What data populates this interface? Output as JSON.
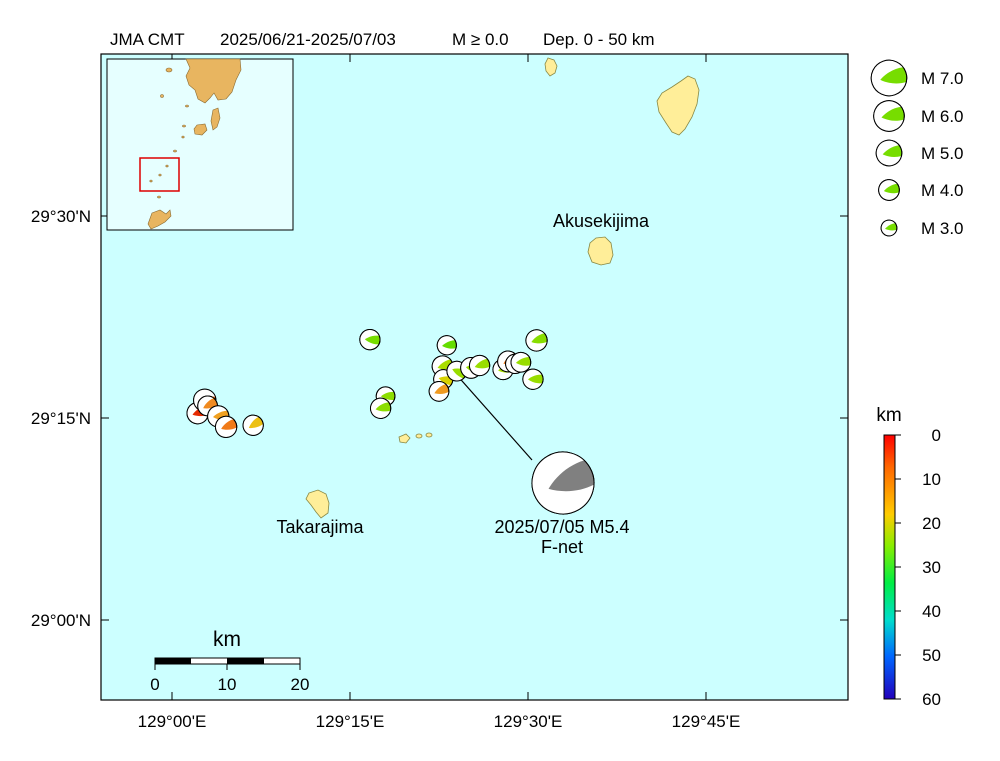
{
  "title": {
    "source": "JMA CMT",
    "period": "2025/06/21-2025/07/03",
    "magnitude": "M ≥ 0.0",
    "depth": "Dep. 0 - 50 km"
  },
  "colors": {
    "sea": "#ccffff",
    "land_main": "#ffee99",
    "land_inset": "#e8b560",
    "inset_sea": "#e6ffff",
    "highlight_box": "#dd0000",
    "mechanism_white": "#ffffff",
    "featured_mechanism": "#808080"
  },
  "axes": {
    "lat_ticks": [
      "29°30'N",
      "29°15'N",
      "29°00'N"
    ],
    "lon_ticks": [
      "129°00'E",
      "129°15'E",
      "129°30'E",
      "129°45'E"
    ]
  },
  "places": {
    "akusekijima": "Akusekijima",
    "takarajima": "Takarajima"
  },
  "featured_event": {
    "label": "2025/07/05 M5.4",
    "source": "F-net",
    "color": "#808080"
  },
  "legend_magnitude": [
    {
      "label": "M 7.0",
      "mag": 7.0
    },
    {
      "label": "M 6.0",
      "mag": 6.0
    },
    {
      "label": "M 5.0",
      "mag": 5.0
    },
    {
      "label": "M 4.0",
      "mag": 4.0
    },
    {
      "label": "M 3.0",
      "mag": 3.0
    }
  ],
  "depth_scale": {
    "unit": "km",
    "ticks": [
      "0",
      "10",
      "20",
      "30",
      "40",
      "50",
      "60"
    ]
  },
  "scale_bar": {
    "unit": "km",
    "ticks": [
      "0",
      "10",
      "20"
    ]
  },
  "mechanisms": [
    {
      "lon": 129.036,
      "lat": 29.256,
      "mag": 3.9,
      "color": "#e62a00",
      "rot": 20
    },
    {
      "lon": 129.046,
      "lat": 29.272,
      "mag": 4.1,
      "color": "#f06a10",
      "rot": 45
    },
    {
      "lon": 129.05,
      "lat": 29.265,
      "mag": 3.6,
      "color": "#f08a20",
      "rot": 10
    },
    {
      "lon": 129.065,
      "lat": 29.252,
      "mag": 3.9,
      "color": "#f0a020",
      "rot": 30
    },
    {
      "lon": 129.076,
      "lat": 29.239,
      "mag": 3.9,
      "color": "#f07a18",
      "rot": 15
    },
    {
      "lon": 129.114,
      "lat": 29.241,
      "mag": 3.7,
      "color": "#ecc015",
      "rot": 5
    },
    {
      "lon": 129.278,
      "lat": 29.347,
      "mag": 3.7,
      "color": "#77dd00",
      "rot": 40
    },
    {
      "lon": 129.3,
      "lat": 29.277,
      "mag": 3.4,
      "color": "#8cdd00",
      "rot": 35
    },
    {
      "lon": 129.293,
      "lat": 29.262,
      "mag": 3.7,
      "color": "#8cdd00",
      "rot": 25
    },
    {
      "lon": 129.38,
      "lat": 29.314,
      "mag": 3.8,
      "color": "#aadd00",
      "rot": 20
    },
    {
      "lon": 129.381,
      "lat": 29.298,
      "mag": 3.5,
      "color": "#d8d200",
      "rot": 50
    },
    {
      "lon": 129.375,
      "lat": 29.283,
      "mag": 3.6,
      "color": "#f09a20",
      "rot": 15
    },
    {
      "lon": 129.386,
      "lat": 29.34,
      "mag": 3.5,
      "color": "#66dd00",
      "rot": 30
    },
    {
      "lon": 129.4,
      "lat": 29.308,
      "mag": 3.6,
      "color": "#99dd00",
      "rot": 60
    },
    {
      "lon": 129.42,
      "lat": 29.312,
      "mag": 3.8,
      "color": "#99dd00",
      "rot": 45
    },
    {
      "lon": 129.432,
      "lat": 29.315,
      "mag": 3.7,
      "color": "#99dd00",
      "rot": 20
    },
    {
      "lon": 129.465,
      "lat": 29.31,
      "mag": 3.7,
      "color": "#aadd00",
      "rot": 25
    },
    {
      "lon": 129.472,
      "lat": 29.32,
      "mag": 3.8,
      "color": "#f07a18",
      "rot": 10
    },
    {
      "lon": 129.482,
      "lat": 29.317,
      "mag": 3.5,
      "color": "#aadd00",
      "rot": 40
    },
    {
      "lon": 129.49,
      "lat": 29.319,
      "mag": 3.6,
      "color": "#99dd00",
      "rot": 30
    },
    {
      "lon": 129.512,
      "lat": 29.346,
      "mag": 3.9,
      "color": "#88dd00",
      "rot": 20
    },
    {
      "lon": 129.507,
      "lat": 29.298,
      "mag": 3.7,
      "color": "#99dd00",
      "rot": 35
    }
  ]
}
